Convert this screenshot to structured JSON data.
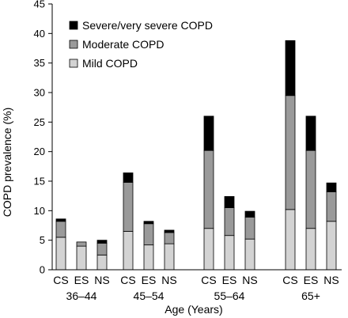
{
  "chart_data": {
    "type": "bar",
    "stacked": true,
    "title": "",
    "xlabel": "Age (Years)",
    "ylabel": "COPD prevalence (%)",
    "ylim": [
      0,
      45
    ],
    "yticks": [
      0,
      5,
      10,
      15,
      20,
      25,
      30,
      35,
      40,
      45
    ],
    "grid": false,
    "legend_position": "top-left",
    "groups": [
      "36–44",
      "45–54",
      "55–64",
      "65+"
    ],
    "subcategories": [
      "CS",
      "ES",
      "NS"
    ],
    "series": [
      {
        "name": "Mild COPD",
        "color": "#d3d3d3",
        "values": [
          5.5,
          4.0,
          2.5,
          6.5,
          4.2,
          4.4,
          7.0,
          5.8,
          5.2,
          10.2,
          7.0,
          8.2
        ]
      },
      {
        "name": "Moderate COPD",
        "color": "#9a9a9a",
        "values": [
          2.7,
          0.7,
          2.0,
          8.3,
          3.6,
          1.9,
          13.2,
          4.7,
          3.7,
          19.3,
          13.2,
          5.0
        ]
      },
      {
        "name": "Severe/very severe COPD",
        "color": "#000000",
        "values": [
          0.4,
          0.0,
          0.5,
          1.6,
          0.4,
          0.4,
          5.8,
          1.9,
          1.0,
          9.3,
          5.8,
          1.5
        ]
      }
    ]
  }
}
